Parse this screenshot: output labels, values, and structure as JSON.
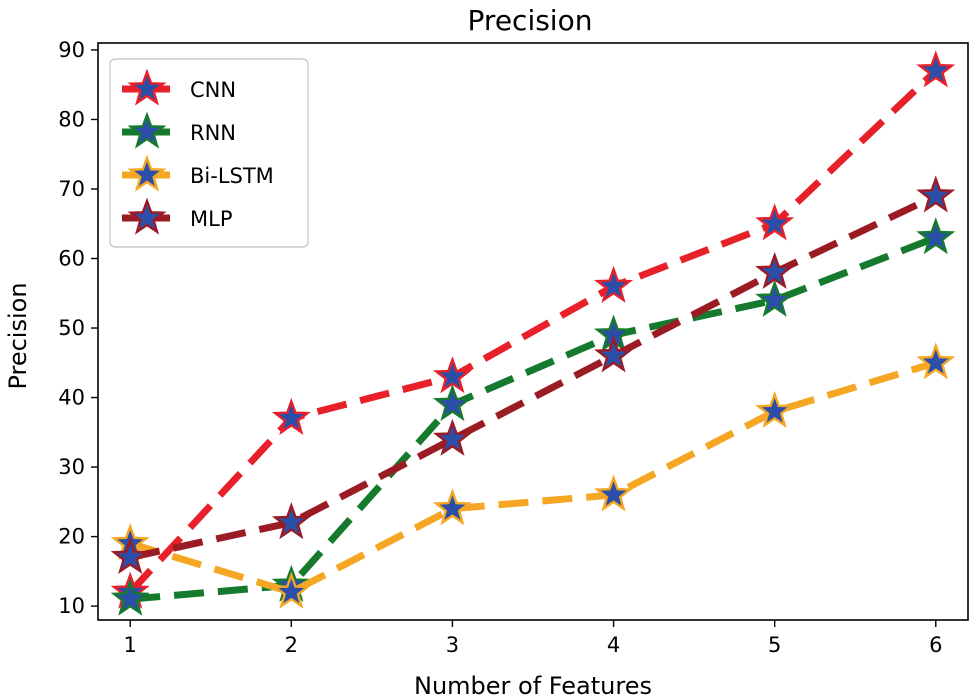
{
  "chart_data": {
    "type": "line",
    "title": "Precision",
    "xlabel": "Number of Features",
    "ylabel": "Precision",
    "x": [
      1,
      2,
      3,
      4,
      5,
      6
    ],
    "xticks": [
      "1",
      "2",
      "3",
      "4",
      "5",
      "6"
    ],
    "xlim": [
      0.8,
      6.2
    ],
    "ylim": [
      8,
      91
    ],
    "yticks": [
      "10",
      "20",
      "30",
      "40",
      "50",
      "60",
      "70",
      "80",
      "90"
    ],
    "legend_position": "upper-left",
    "grid": false,
    "marker": "star",
    "marker_color": "#2b4fa8",
    "series": [
      {
        "name": "CNN",
        "color": "#e8202a",
        "values": [
          12,
          37,
          43,
          56,
          65,
          87
        ]
      },
      {
        "name": "RNN",
        "color": "#167a2e",
        "values": [
          11,
          13,
          39,
          49,
          54,
          63
        ]
      },
      {
        "name": "Bi-LSTM",
        "color": "#f5a623",
        "values": [
          19,
          12,
          24,
          26,
          38,
          45
        ]
      },
      {
        "name": "MLP",
        "color": "#9b1b24",
        "values": [
          17,
          22,
          34,
          46,
          58,
          69
        ]
      }
    ]
  }
}
